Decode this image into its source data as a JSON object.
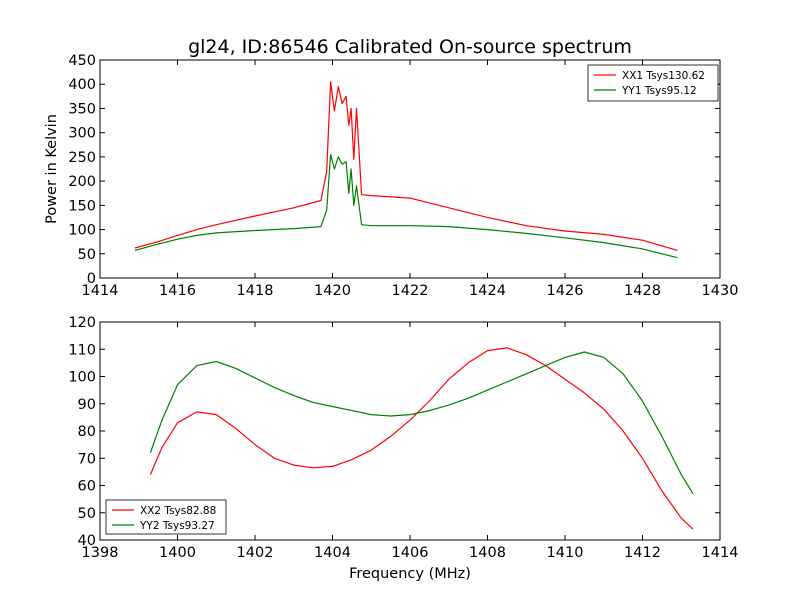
{
  "figure": {
    "title": "gl24, ID:86546 Calibrated On-source spectrum"
  },
  "chart_data": [
    {
      "type": "line",
      "title": "gl24, ID:86546 Calibrated On-source spectrum",
      "xlabel": "",
      "ylabel": "Power in Kelvin",
      "xlim": [
        1414,
        1430
      ],
      "ylim": [
        0,
        450
      ],
      "xticks": [
        1414,
        1416,
        1418,
        1420,
        1422,
        1424,
        1426,
        1428,
        1430
      ],
      "yticks": [
        0,
        50,
        100,
        150,
        200,
        250,
        300,
        350,
        400,
        450
      ],
      "legend_position": "top-right",
      "series": [
        {
          "name": "XX1 Tsys130.62",
          "color": "#ff0000",
          "x": [
            1414.9,
            1415.5,
            1416.0,
            1416.5,
            1417.0,
            1418.0,
            1419.0,
            1419.7,
            1419.85,
            1419.95,
            1420.05,
            1420.15,
            1420.25,
            1420.35,
            1420.42,
            1420.48,
            1420.55,
            1420.62,
            1420.75,
            1421.0,
            1422.0,
            1423.0,
            1424.0,
            1425.0,
            1426.0,
            1427.0,
            1428.0,
            1428.9
          ],
          "values": [
            62,
            75,
            88,
            100,
            110,
            128,
            145,
            160,
            220,
            405,
            345,
            395,
            360,
            375,
            315,
            350,
            245,
            350,
            172,
            170,
            165,
            145,
            125,
            108,
            97,
            90,
            78,
            57
          ]
        },
        {
          "name": "YY1 Tsys95.12",
          "color": "#008000",
          "x": [
            1414.9,
            1415.5,
            1416.0,
            1416.5,
            1417.0,
            1418.0,
            1419.0,
            1419.7,
            1419.85,
            1419.95,
            1420.05,
            1420.15,
            1420.25,
            1420.35,
            1420.42,
            1420.48,
            1420.55,
            1420.62,
            1420.75,
            1421.0,
            1422.0,
            1423.0,
            1424.0,
            1425.0,
            1426.0,
            1427.0,
            1428.0,
            1428.9
          ],
          "values": [
            57,
            70,
            80,
            88,
            93,
            98,
            102,
            106,
            140,
            255,
            225,
            250,
            235,
            240,
            175,
            225,
            150,
            190,
            110,
            108,
            108,
            106,
            100,
            92,
            83,
            73,
            60,
            42
          ]
        }
      ]
    },
    {
      "type": "line",
      "title": "",
      "xlabel": "Frequency (MHz)",
      "ylabel": "",
      "xlim": [
        1398,
        1414
      ],
      "ylim": [
        40,
        120
      ],
      "xticks": [
        1398,
        1400,
        1402,
        1404,
        1406,
        1408,
        1410,
        1412,
        1414
      ],
      "yticks": [
        40,
        50,
        60,
        70,
        80,
        90,
        100,
        110,
        120
      ],
      "legend_position": "bottom-left",
      "series": [
        {
          "name": "XX2 Tsys82.88",
          "color": "#ff0000",
          "x": [
            1399.3,
            1399.6,
            1400.0,
            1400.5,
            1401.0,
            1401.5,
            1402.0,
            1402.5,
            1403.0,
            1403.5,
            1404.0,
            1404.5,
            1405.0,
            1405.5,
            1406.0,
            1406.5,
            1407.0,
            1407.5,
            1408.0,
            1408.5,
            1409.0,
            1409.5,
            1410.0,
            1410.5,
            1411.0,
            1411.5,
            1412.0,
            1412.5,
            1413.0,
            1413.3
          ],
          "values": [
            64,
            74,
            83,
            87,
            86,
            81,
            75,
            70,
            67.5,
            66.5,
            67,
            69.5,
            73,
            78,
            84,
            91,
            99,
            105,
            109.5,
            110.5,
            108,
            104,
            99,
            94,
            88,
            80,
            70,
            58,
            48,
            44
          ]
        },
        {
          "name": "YY2 Tsys93.27",
          "color": "#008000",
          "x": [
            1399.3,
            1399.6,
            1400.0,
            1400.5,
            1401.0,
            1401.5,
            1402.0,
            1402.5,
            1403.0,
            1403.5,
            1404.0,
            1404.5,
            1405.0,
            1405.5,
            1406.0,
            1406.5,
            1407.0,
            1407.5,
            1408.0,
            1408.5,
            1409.0,
            1409.5,
            1410.0,
            1410.5,
            1411.0,
            1411.5,
            1412.0,
            1412.5,
            1413.0,
            1413.3
          ],
          "values": [
            72,
            84,
            97,
            104,
            105.5,
            103,
            99.5,
            96,
            93,
            90.5,
            89,
            87.5,
            86,
            85.5,
            86,
            87.5,
            89.5,
            92,
            95,
            98,
            101,
            104,
            107,
            109,
            107,
            101,
            91,
            78,
            64,
            57
          ]
        }
      ]
    }
  ]
}
